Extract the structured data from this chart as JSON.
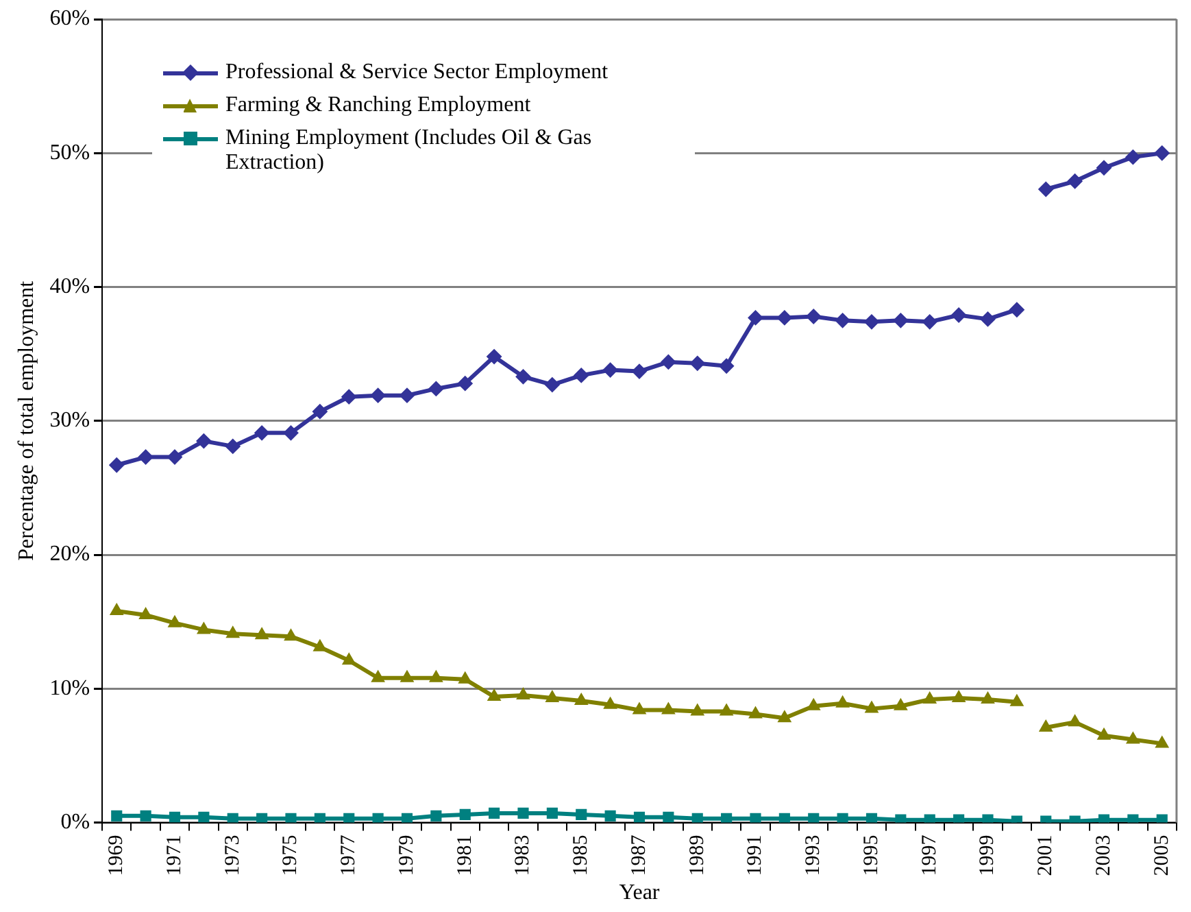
{
  "chart_data": {
    "type": "line",
    "xlabel": "Year",
    "ylabel": "Percentage of total employment",
    "categories": [
      "1969",
      null,
      "1971",
      null,
      "1973",
      null,
      "1975",
      null,
      "1977",
      null,
      "1979",
      null,
      "1981",
      null,
      "1983",
      null,
      "1985",
      null,
      "1987",
      null,
      "1989",
      null,
      "1991",
      null,
      "1993",
      null,
      "1995",
      null,
      "1997",
      null,
      "1999",
      null,
      "2001",
      null,
      "2003",
      null,
      "2005"
    ],
    "ylim": [
      0,
      60
    ],
    "yticks": [
      {
        "value": 0,
        "label": "0%"
      },
      {
        "value": 10,
        "label": "10%"
      },
      {
        "value": 20,
        "label": "20%"
      },
      {
        "value": 30,
        "label": "30%"
      },
      {
        "value": 40,
        "label": "40%"
      },
      {
        "value": 50,
        "label": "50%"
      },
      {
        "value": 60,
        "label": "60%"
      }
    ],
    "grid": "y",
    "legend": "top left",
    "line_style": "solid",
    "series": [
      {
        "name": "Professional & Service Sector Employment",
        "color": "#333399",
        "marker": "diamond",
        "values": [
          26.7,
          27.3,
          27.3,
          28.5,
          28.1,
          29.1,
          29.1,
          30.7,
          31.8,
          31.9,
          31.9,
          32.4,
          32.8,
          34.8,
          33.3,
          32.7,
          33.4,
          33.8,
          33.7,
          34.4,
          34.3,
          34.1,
          37.7,
          37.7,
          37.8,
          37.5,
          37.4,
          37.5,
          37.4,
          37.9,
          37.6,
          38.3,
          null,
          null,
          null,
          null,
          null
        ]
      },
      {
        "color": "#333399",
        "marker": "diamond",
        "values": [
          null,
          null,
          null,
          null,
          null,
          null,
          null,
          null,
          null,
          null,
          null,
          null,
          null,
          null,
          null,
          null,
          null,
          null,
          null,
          null,
          null,
          null,
          null,
          null,
          null,
          null,
          null,
          null,
          null,
          null,
          null,
          null,
          47.3,
          47.9,
          48.9,
          49.7,
          50.0
        ]
      },
      {
        "name": "Farming & Ranching Employment",
        "color": "#808000",
        "marker": "triangle",
        "values": [
          15.8,
          15.5,
          14.9,
          14.4,
          14.1,
          14.0,
          13.9,
          13.1,
          12.1,
          10.8,
          10.8,
          10.8,
          10.7,
          9.4,
          9.5,
          9.3,
          9.1,
          8.8,
          8.4,
          8.4,
          8.3,
          8.3,
          8.1,
          7.8,
          8.7,
          8.9,
          8.5,
          8.7,
          9.2,
          9.3,
          9.2,
          9.0,
          null,
          null,
          null,
          null,
          null
        ]
      },
      {
        "color": "#808000",
        "marker": "triangle",
        "values": [
          null,
          null,
          null,
          null,
          null,
          null,
          null,
          null,
          null,
          null,
          null,
          null,
          null,
          null,
          null,
          null,
          null,
          null,
          null,
          null,
          null,
          null,
          null,
          null,
          null,
          null,
          null,
          null,
          null,
          null,
          null,
          null,
          7.1,
          7.5,
          6.5,
          6.2,
          5.9
        ]
      },
      {
        "name": "Mining Employment (Includes Oil & Gas Extraction)",
        "color": "#008080",
        "marker": "square",
        "values": [
          0.5,
          0.5,
          0.4,
          0.4,
          0.3,
          0.3,
          0.3,
          0.3,
          0.3,
          0.3,
          0.3,
          0.5,
          0.6,
          0.7,
          0.7,
          0.7,
          0.6,
          0.5,
          0.4,
          0.4,
          0.3,
          0.3,
          0.3,
          0.3,
          0.3,
          0.3,
          0.3,
          0.2,
          0.2,
          0.2,
          0.2,
          0.1,
          null,
          null,
          null,
          null,
          null
        ]
      },
      {
        "color": "#008080",
        "marker": "square",
        "values": [
          null,
          null,
          null,
          null,
          null,
          null,
          null,
          null,
          null,
          null,
          null,
          null,
          null,
          null,
          null,
          null,
          null,
          null,
          null,
          null,
          null,
          null,
          null,
          null,
          null,
          null,
          null,
          null,
          null,
          null,
          null,
          null,
          0.1,
          0.1,
          0.2,
          0.2,
          0.2
        ]
      }
    ]
  }
}
